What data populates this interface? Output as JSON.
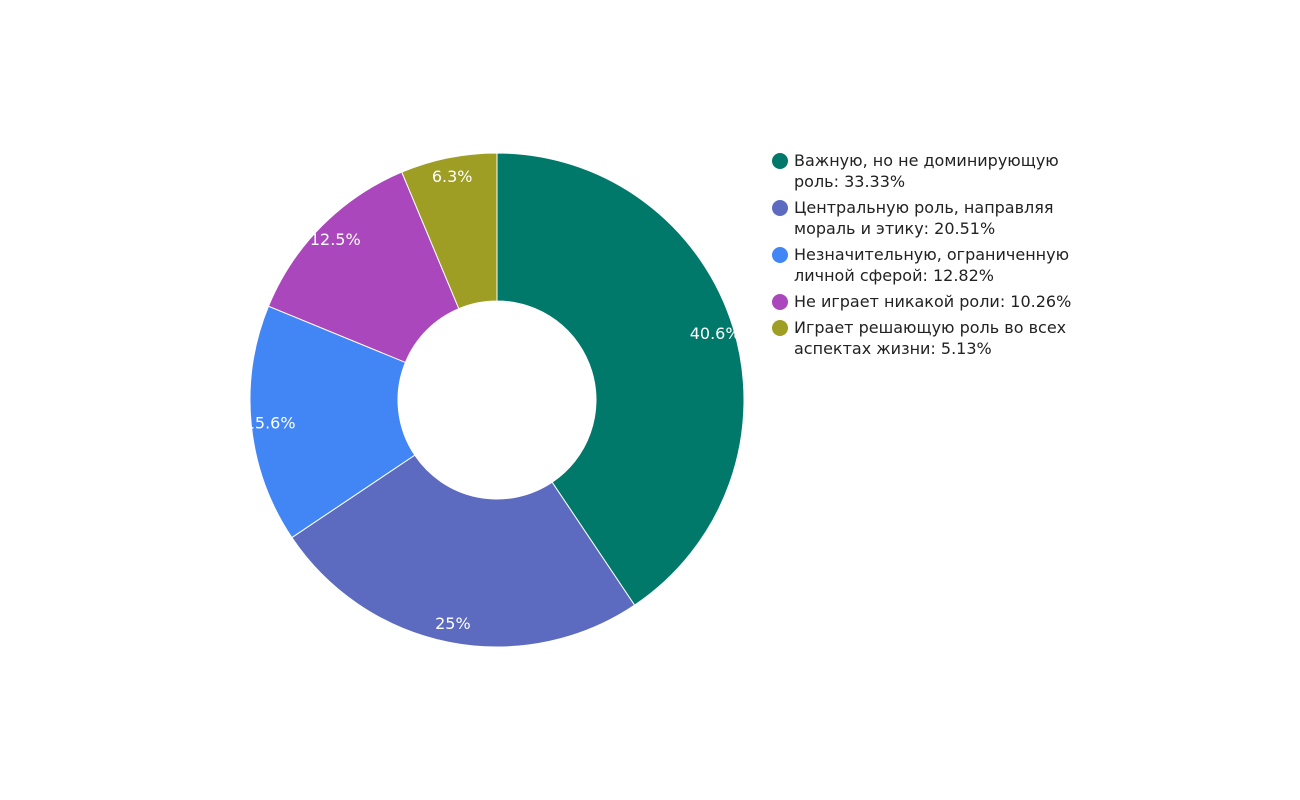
{
  "chart_data": {
    "type": "pie",
    "donut": true,
    "slices": [
      {
        "label": "Важную, но не доминирующую роль",
        "legend_value": "33.33%",
        "value": 40.6,
        "display": "40.6%",
        "color": "#00796b"
      },
      {
        "label": "Центральную роль, направляя мораль и этику",
        "legend_value": "20.51%",
        "value": 25,
        "display": "25%",
        "color": "#5c6bc0"
      },
      {
        "label": "Незначительную, ограниченную личной сферой",
        "legend_value": "12.82%",
        "value": 15.6,
        "display": "15.6%",
        "color": "#4285f4"
      },
      {
        "label": "Не играет никакой роли",
        "legend_value": "10.26%",
        "value": 12.5,
        "display": "12.5%",
        "color": "#ab47bc"
      },
      {
        "label": "Играет решающую роль во всех аспектах жизни",
        "legend_value": "5.13%",
        "value": 6.3,
        "display": "6.3%",
        "color": "#9e9d24"
      }
    ],
    "legend": [
      "Важную, но не доминирующую роль: 33.33%",
      "Центральную роль, направляя мораль и этику: 20.51%",
      "Незначительную, ограниченную личной сферой: 12.82%",
      "Не играет никакой роли: 10.26%",
      "Играет решающую роль во всех аспектах жизни: 5.13%"
    ],
    "legend_position": "right"
  }
}
